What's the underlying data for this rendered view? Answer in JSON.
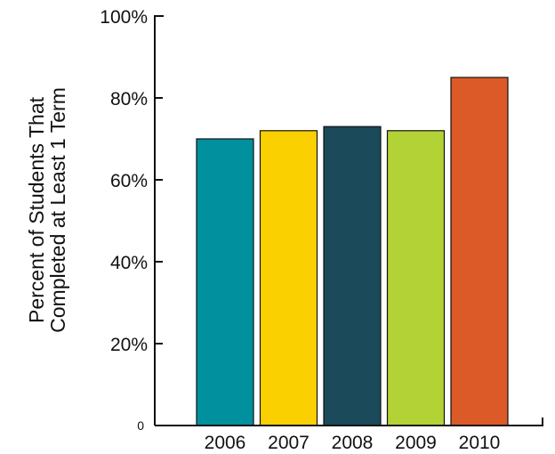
{
  "chart_data": {
    "type": "bar",
    "title": "",
    "xlabel": "",
    "ylabel_lines": [
      "Percent of Students That",
      "Completed at Least 1 Term"
    ],
    "categories": [
      "2006",
      "2007",
      "2008",
      "2009",
      "2010"
    ],
    "values": [
      70,
      72,
      73,
      72,
      85
    ],
    "colors": [
      "#00909e",
      "#fad000",
      "#1b4a5a",
      "#b2d235",
      "#dc5a28"
    ],
    "ylim": [
      0,
      100
    ],
    "yticks": [
      0,
      20,
      40,
      60,
      80,
      100
    ],
    "ytick_labels": [
      "0",
      "20%",
      "40%",
      "60%",
      "80%",
      "100%"
    ],
    "grid": false,
    "legend": "none"
  }
}
